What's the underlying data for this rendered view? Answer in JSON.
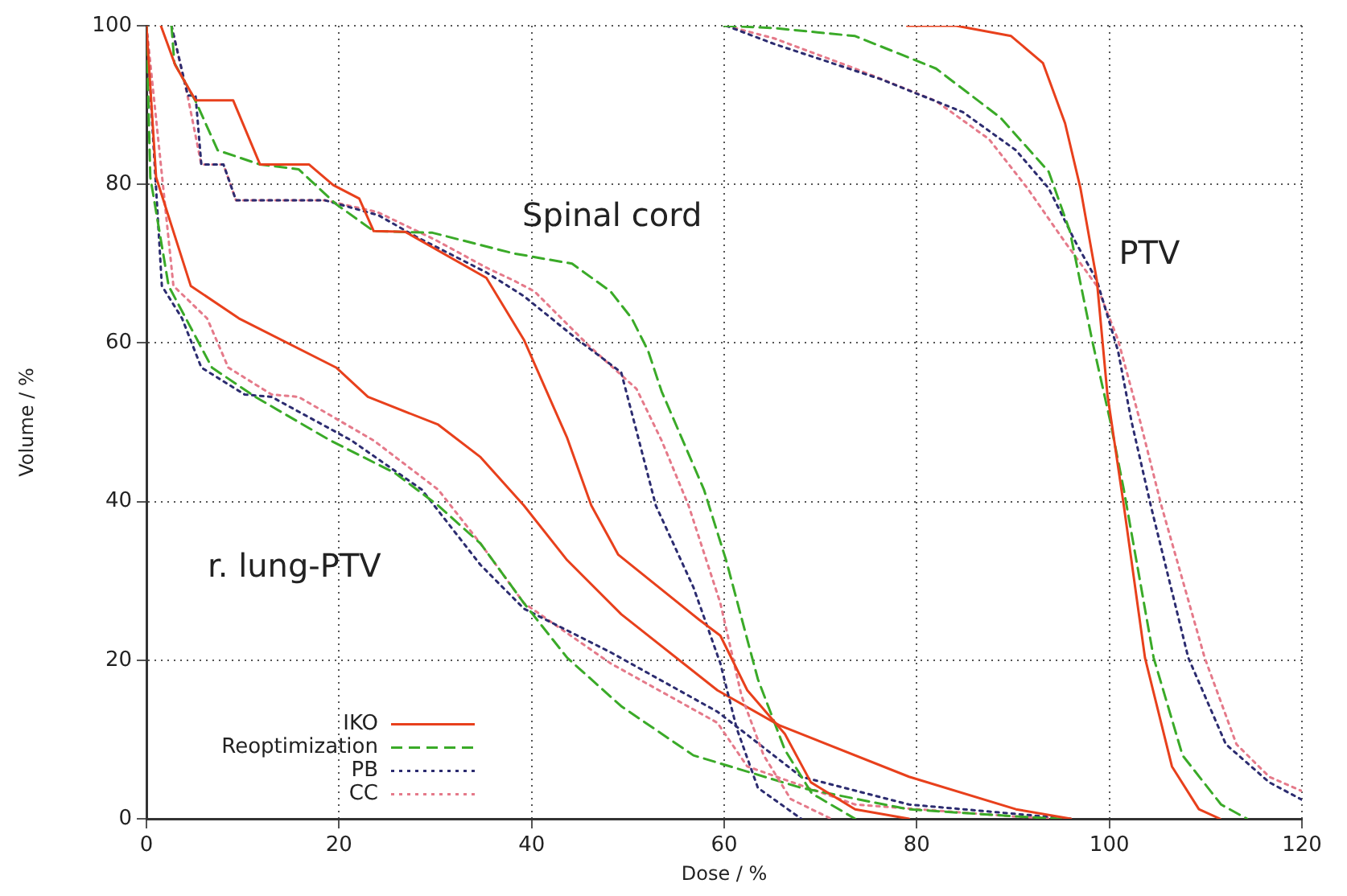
{
  "chart_data": {
    "type": "line",
    "xlabel": "Dose / %",
    "ylabel": "Volume / %",
    "xlim": [
      0,
      120
    ],
    "xticks": [
      0,
      20,
      40,
      60,
      80,
      100,
      120
    ],
    "ylim": [
      0,
      100
    ],
    "yticks": [
      0,
      20,
      40,
      60,
      80,
      100
    ],
    "grid": true,
    "legend": "bottom left",
    "marker": "none",
    "annotations": [
      "Spinal cord",
      "PTV",
      "r. lung-PTV"
    ],
    "series": [
      {
        "name": "IKO",
        "color": "#e8401c",
        "line_style": "solid",
        "x": [
          1.5,
          3,
          5.1,
          9,
          11.8,
          16.9,
          19.4,
          22.1,
          23.6,
          26.9,
          35.3,
          39.2,
          43.7,
          46.2,
          49,
          57.4,
          59.6,
          62.4,
          66.3,
          69,
          73.6,
          79.2
        ],
        "values": [
          100,
          95,
          90.6,
          90.6,
          82.5,
          82.5,
          79.9,
          78.2,
          74.1,
          74,
          68.2,
          60.4,
          48,
          39.5,
          33.3,
          25.1,
          23.1,
          16.2,
          10.7,
          4.6,
          1.2,
          0
        ]
      },
      {
        "name": "Reoptimization",
        "color": "#3aaa28",
        "line_style": "dashed",
        "x": [
          2.6,
          2.9,
          5.1,
          7.4,
          11.8,
          15.8,
          19.7,
          23.6,
          29.7,
          38.1,
          44.2,
          48.2,
          50.4,
          52.1,
          53.5,
          57.9,
          60.2,
          63.5,
          66.3,
          69.1,
          73.6
        ],
        "values": [
          100,
          95.3,
          90.5,
          84.3,
          82.5,
          81.9,
          77.5,
          74.1,
          73.9,
          71.3,
          70,
          66.5,
          63.1,
          59,
          53.9,
          41.5,
          32.6,
          17.6,
          8.7,
          3.2,
          0
        ]
      },
      {
        "name": "PB",
        "color": "#2c2c70",
        "line_style": "dotted",
        "x": [
          2.6,
          4.3,
          5.1,
          5.7,
          8,
          9.3,
          18.5,
          24.1,
          28,
          35.3,
          39.2,
          44.8,
          49.3,
          50.7,
          52.9,
          56.8,
          59.6,
          61.3,
          63.5,
          68
        ],
        "values": [
          100,
          91.2,
          91.2,
          82.5,
          82.5,
          78,
          78,
          76.1,
          73.4,
          68.9,
          65.9,
          60.4,
          56.3,
          49.8,
          39.5,
          29.2,
          19.6,
          11.4,
          3.9,
          0
        ]
      },
      {
        "name": "CC",
        "color": "#e57a8a",
        "line_style": "dotted",
        "x": [
          2.6,
          4.3,
          5.7,
          8,
          9.3,
          18.5,
          24,
          30,
          35.3,
          38.1,
          40.3,
          45.9,
          50.9,
          53.5,
          56.3,
          59.6,
          61.8,
          64.1,
          66.9,
          71.1
        ],
        "values": [
          100,
          91,
          82.5,
          82.5,
          78,
          78,
          76.5,
          73,
          69.5,
          67.9,
          66.5,
          59.7,
          54.2,
          47.7,
          39.5,
          27.2,
          15.5,
          8,
          2.5,
          0
        ]
      },
      {
        "color": "#e8401c",
        "line_style": "solid",
        "x": [
          0,
          1,
          4.6,
          9.6,
          19.7,
          23,
          30.3,
          34.7,
          39.2,
          43.7,
          49.3,
          59.3,
          65.7,
          79.2,
          90.3,
          96
        ],
        "values": [
          100,
          80.9,
          67.2,
          63.1,
          56.9,
          53.2,
          49.7,
          45.6,
          39.5,
          32.6,
          25.8,
          16.2,
          11.8,
          5.3,
          1.2,
          0
        ]
      },
      {
        "color": "#3aaa28",
        "line_style": "dashed",
        "x": [
          0,
          0.4,
          2.3,
          6.8,
          11.3,
          19.1,
          25.8,
          30.3,
          34.7,
          39.2,
          43.7,
          49.3,
          56.8,
          68,
          79.1,
          90.3,
          95
        ],
        "values": [
          100,
          80.9,
          67.2,
          56.9,
          53.2,
          47.7,
          43.6,
          39.5,
          34.7,
          27.2,
          20.3,
          14.2,
          8,
          3.9,
          1.2,
          0.3,
          0
        ]
      },
      {
        "color": "#2c2c70",
        "line_style": "dotted",
        "x": [
          0,
          1.6,
          3.7,
          5.7,
          10.2,
          13,
          21.3,
          28.6,
          34.7,
          39.2,
          48.2,
          59.3,
          68,
          79.2,
          96
        ],
        "values": [
          100,
          67.2,
          63.1,
          56.9,
          53.5,
          53.2,
          47.7,
          41.5,
          32,
          26.5,
          21,
          13.5,
          5.3,
          1.8,
          0
        ]
      },
      {
        "color": "#e57a8a",
        "line_style": "dotted",
        "x": [
          0,
          2.8,
          6.3,
          8.5,
          13,
          15.8,
          23.6,
          30.3,
          34.7,
          39.2,
          48.2,
          59.3,
          62.4,
          73.6,
          90,
          95
        ],
        "values": [
          100,
          67.2,
          63.1,
          56.9,
          53.5,
          53.2,
          47.7,
          41.5,
          34.7,
          27.2,
          19.6,
          12.1,
          6.6,
          1.8,
          0.3,
          0
        ]
      },
      {
        "color": "#e8401c",
        "line_style": "solid",
        "x": [
          79,
          84.1,
          89.8,
          93.1,
          95.4,
          97,
          98.7,
          99.8,
          101.5,
          103.7,
          106.5,
          109.3,
          111.5
        ],
        "values": [
          100,
          100,
          98.7,
          95.3,
          87.7,
          79.5,
          67.9,
          53.5,
          39.5,
          20.3,
          6.6,
          1.2,
          0
        ]
      },
      {
        "color": "#3aaa28",
        "line_style": "dashed",
        "x": [
          60,
          65.2,
          73.6,
          82,
          88.7,
          93.7,
          95.9,
          98.2,
          100.1,
          101.5,
          104.6,
          107.6,
          111.6,
          114.3
        ],
        "values": [
          100,
          99.7,
          98.7,
          94.6,
          88.4,
          81.6,
          74.1,
          60.4,
          50.1,
          41.5,
          20.3,
          8,
          1.8,
          0
        ]
      },
      {
        "color": "#2c2c70",
        "line_style": "dotted",
        "x": [
          60.2,
          65.2,
          76.4,
          84.8,
          90.3,
          93.7,
          96.5,
          98.7,
          100.9,
          102.3,
          104.3,
          108.2,
          112.1,
          116.6,
          120
        ],
        "values": [
          100,
          97.7,
          93.2,
          89.1,
          84.3,
          79.5,
          72.7,
          67.9,
          59,
          50.1,
          39.5,
          20.3,
          9.4,
          4.6,
          2.4
        ]
      },
      {
        "color": "#e57a8a",
        "line_style": "dotted",
        "x": [
          60.2,
          65.2,
          73.6,
          82,
          87.5,
          91.5,
          95.4,
          98.7,
          100.9,
          103.2,
          105.4,
          109.9,
          113.2,
          116.6,
          120
        ],
        "values": [
          100,
          98.4,
          94.6,
          90.5,
          85.7,
          79.5,
          72.7,
          67.2,
          60.4,
          50.1,
          39.5,
          20.3,
          9.4,
          5.3,
          3.5
        ]
      }
    ]
  }
}
